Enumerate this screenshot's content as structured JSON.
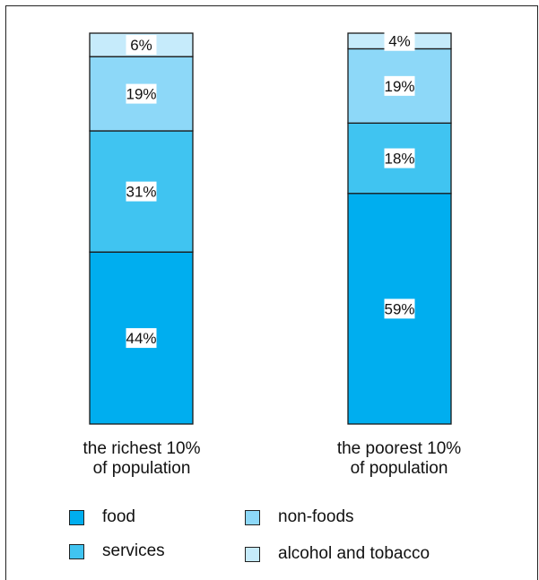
{
  "chart_data": {
    "type": "bar",
    "stacked": true,
    "categories": [
      "the richest 10%\nof population",
      "the poorest 10%\nof population"
    ],
    "series": [
      {
        "name": "food",
        "values": [
          44,
          59
        ],
        "color": "#00aeef"
      },
      {
        "name": "services",
        "values": [
          31,
          18
        ],
        "color": "#40c4f1"
      },
      {
        "name": "non-foods",
        "values": [
          19,
          19
        ],
        "color": "#8dd8f8"
      },
      {
        "name": "alcohol and tobacco",
        "values": [
          6,
          4
        ],
        "color": "#c6ebfb"
      }
    ],
    "value_labels": [
      [
        "44%",
        "31%",
        "19%",
        "6%"
      ],
      [
        "59%",
        "18%",
        "19%",
        "4%"
      ]
    ],
    "ylim": [
      0,
      100
    ],
    "grid": false,
    "legend_position": "bottom"
  }
}
